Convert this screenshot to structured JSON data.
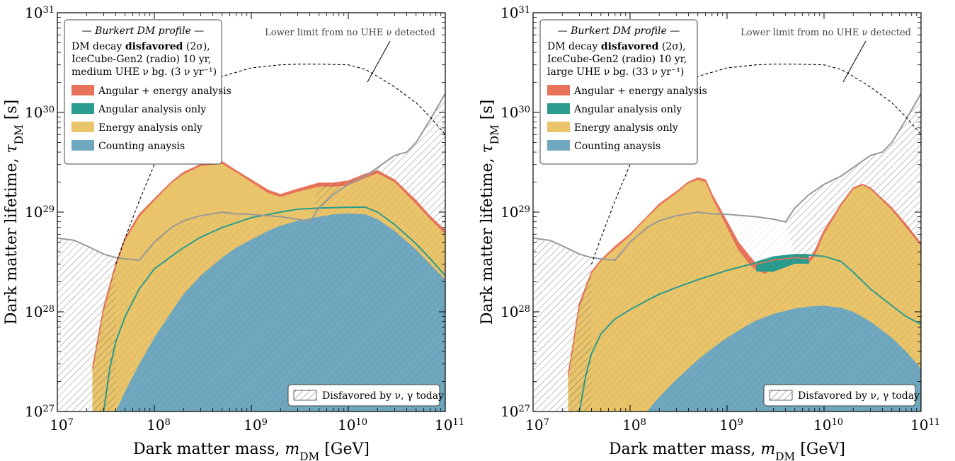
{
  "colors": {
    "angular_energy": "#e8735a",
    "angular": "#2a9d8f",
    "energy": "#e9c46a",
    "counting": "#6fa8bf",
    "disfavored_line": "#999999",
    "frame": "#000000"
  },
  "chart_data": [
    {
      "type": "area",
      "xlabel_main": "Dark matter mass, ",
      "xlabel_var": "m",
      "xlabel_sub": "DM",
      "xlabel_unit": " [GeV]",
      "ylabel_main": "Dark matter lifetime, ",
      "ylabel_var": "τ",
      "ylabel_sub": "DM",
      "ylabel_unit": " [s]",
      "x_scale": "log",
      "y_scale": "log",
      "xlim": [
        10000000.0,
        100000000000.0
      ],
      "ylim": [
        1e+27,
        1e+31
      ],
      "x_ticks": [
        {
          "base": "10",
          "exp": "7"
        },
        {
          "base": "10",
          "exp": "8"
        },
        {
          "base": "10",
          "exp": "9"
        },
        {
          "base": "10",
          "exp": "10"
        },
        {
          "base": "10",
          "exp": "11"
        }
      ],
      "y_ticks": [
        {
          "base": "10",
          "exp": "27"
        },
        {
          "base": "10",
          "exp": "28"
        },
        {
          "base": "10",
          "exp": "29"
        },
        {
          "base": "10",
          "exp": "30"
        },
        {
          "base": "10",
          "exp": "31"
        }
      ],
      "legend": {
        "header": "— Burkert DM profile —",
        "line1_pre": "DM decay ",
        "line1_bold": "disfavored",
        "line1_post": " (2σ),",
        "line2": "IceCube-Gen2 (radio) 10 yr,",
        "line3": "medium UHE ν bg. (3 ν yr⁻¹)",
        "entries": [
          "Angular + energy analysis",
          "Angular analysis only",
          "Energy analysis only",
          "Counting anaysis"
        ]
      },
      "annotation": "Lower limit from no UHE ν detected",
      "hatch_legend": "Disfavored by ν, γ today",
      "series": [
        {
          "name": "Angular + energy analysis",
          "x": [
            23000000.0,
            30000000.0,
            40000000.0,
            50000000.0,
            70000000.0,
            100000000.0,
            150000000.0,
            200000000.0,
            300000000.0,
            500000000.0,
            700000000.0,
            1000000000.0,
            1500000000.0,
            2000000000.0,
            3000000000.0,
            5000000000.0,
            7000000000.0,
            10000000000.0,
            15000000000.0,
            20000000000.0,
            30000000000.0,
            50000000000.0,
            70000000000.0,
            100000000000.0
          ],
          "y": [
            2.7e+27,
            1.1e+28,
            3e+28,
            5.5e+28,
            9.5e+28,
            1.35e+29,
            2e+29,
            2.5e+29,
            3e+29,
            3.2e+29,
            2.6e+29,
            2.1e+29,
            1.65e+29,
            1.5e+29,
            1.7e+29,
            1.95e+29,
            1.95e+29,
            2.05e+29,
            2.4e+29,
            2.6e+29,
            2.1e+29,
            1.3e+29,
            9e+28,
            6.5e+28
          ]
        },
        {
          "name": "Energy analysis only",
          "x": [
            23000000.0,
            30000000.0,
            40000000.0,
            50000000.0,
            70000000.0,
            100000000.0,
            150000000.0,
            200000000.0,
            300000000.0,
            500000000.0,
            700000000.0,
            1000000000.0,
            1500000000.0,
            2000000000.0,
            3000000000.0,
            5000000000.0,
            7000000000.0,
            10000000000.0,
            15000000000.0,
            20000000000.0,
            30000000000.0,
            50000000000.0,
            70000000000.0,
            100000000000.0
          ],
          "y": [
            2.5e+27,
            1e+28,
            2.8e+28,
            5.2e+28,
            9e+28,
            1.3e+29,
            1.95e+29,
            2.4e+29,
            2.9e+29,
            3.05e+29,
            2.5e+29,
            2e+29,
            1.55e+29,
            1.42e+29,
            1.6e+29,
            1.8e+29,
            1.8e+29,
            1.85e+29,
            2.2e+29,
            2.45e+29,
            2e+29,
            1.2e+29,
            8.5e+28,
            6e+28
          ]
        },
        {
          "name": "Angular analysis only",
          "x": [
            30000000.0,
            35000000.0,
            40000000.0,
            50000000.0,
            70000000.0,
            100000000.0,
            150000000.0,
            200000000.0,
            300000000.0,
            500000000.0,
            1000000000.0,
            2000000000.0,
            3000000000.0,
            5000000000.0,
            10000000000.0,
            15000000000.0,
            20000000000.0,
            30000000000.0,
            50000000000.0,
            70000000000.0,
            100000000000.0
          ],
          "y": [
            1e+27,
            2.8e+27,
            5e+27,
            9e+27,
            1.7e+28,
            2.7e+28,
            3.6e+28,
            4.4e+28,
            5.6e+28,
            7e+28,
            8.8e+28,
            1e+29,
            1.07e+29,
            1.1e+29,
            1.12e+29,
            1.12e+29,
            1e+29,
            7.5e+28,
            4.8e+28,
            3.4e+28,
            2.3e+28
          ]
        },
        {
          "name": "Counting anaysis",
          "x": [
            40000000.0,
            50000000.0,
            70000000.0,
            100000000.0,
            150000000.0,
            200000000.0,
            300000000.0,
            500000000.0,
            700000000.0,
            1000000000.0,
            1500000000.0,
            2000000000.0,
            3000000000.0,
            5000000000.0,
            7000000000.0,
            10000000000.0,
            15000000000.0,
            20000000000.0,
            30000000000.0,
            50000000000.0,
            70000000000.0,
            100000000000.0
          ],
          "y": [
            1e+27,
            1.6e+27,
            3e+27,
            5.5e+27,
            1e+28,
            1.5e+28,
            2.3e+28,
            3.5e+28,
            4.4e+28,
            5.3e+28,
            6.5e+28,
            7.3e+28,
            8.2e+28,
            9e+28,
            9.5e+28,
            9.7e+28,
            9.5e+28,
            8.5e+28,
            6.5e+28,
            4.2e+28,
            3e+28,
            2.1e+28
          ]
        },
        {
          "name": "Disfavored by ν, γ today",
          "x": [
            10000000.0,
            15000000.0,
            20000000.0,
            30000000.0,
            40000000.0,
            50000000.0,
            70000000.0,
            100000000.0,
            150000000.0,
            200000000.0,
            300000000.0,
            500000000.0,
            700000000.0,
            1000000000.0,
            2000000000.0,
            3000000000.0,
            4000000000.0,
            5000000000.0,
            7000000000.0,
            10000000000.0,
            15000000000.0,
            20000000000.0,
            30000000000.0,
            40000000000.0,
            50000000000.0,
            70000000000.0,
            100000000000.0
          ],
          "y": [
            5.5e+28,
            5.2e+28,
            4.6e+28,
            3.8e+28,
            3.5e+28,
            3.4e+28,
            3.3e+28,
            5e+28,
            7e+28,
            8.2e+28,
            9.2e+28,
            1e+29,
            9.6e+28,
            9.5e+28,
            9e+28,
            8.5e+28,
            8e+28,
            1.1e+29,
            1.5e+29,
            1.9e+29,
            2.3e+29,
            2.8e+29,
            3.7e+29,
            4e+29,
            5e+29,
            8.5e+29,
            1.55e+30
          ]
        },
        {
          "name": "Lower limit from no UHE ν detected",
          "x": [
            40000000.0,
            50000000.0,
            70000000.0,
            100000000.0,
            150000000.0,
            200000000.0,
            300000000.0,
            500000000.0,
            1000000000.0,
            2000000000.0,
            3000000000.0,
            5000000000.0,
            10000000000.0,
            15000000000.0,
            20000000000.0,
            30000000000.0,
            50000000000.0,
            70000000000.0,
            100000000000.0
          ],
          "y": [
            3e+28,
            5.5e+28,
            1.3e+29,
            3e+29,
            6.5e+29,
            1e+30,
            1.6e+30,
            2.3e+30,
            2.8e+30,
            3e+30,
            3.05e+30,
            3.05e+30,
            3e+30,
            2.7e+30,
            2.3e+30,
            1.8e+30,
            1.25e+30,
            9e+29,
            6e+29
          ]
        }
      ]
    },
    {
      "type": "area",
      "xlabel_main": "Dark matter mass, ",
      "xlabel_var": "m",
      "xlabel_sub": "DM",
      "xlabel_unit": " [GeV]",
      "ylabel_main": "Dark matter lifetime, ",
      "ylabel_var": "τ",
      "ylabel_sub": "DM",
      "ylabel_unit": " [s]",
      "x_scale": "log",
      "y_scale": "log",
      "xlim": [
        10000000.0,
        100000000000.0
      ],
      "ylim": [
        1e+27,
        1e+31
      ],
      "x_ticks": [
        {
          "base": "10",
          "exp": "7"
        },
        {
          "base": "10",
          "exp": "8"
        },
        {
          "base": "10",
          "exp": "9"
        },
        {
          "base": "10",
          "exp": "10"
        },
        {
          "base": "10",
          "exp": "11"
        }
      ],
      "y_ticks": [
        {
          "base": "10",
          "exp": "27"
        },
        {
          "base": "10",
          "exp": "28"
        },
        {
          "base": "10",
          "exp": "29"
        },
        {
          "base": "10",
          "exp": "30"
        },
        {
          "base": "10",
          "exp": "31"
        }
      ],
      "legend": {
        "header": "— Burkert DM profile —",
        "line1_pre": "DM decay ",
        "line1_bold": "disfavored",
        "line1_post": " (2σ),",
        "line2": "IceCube-Gen2 (radio) 10 yr,",
        "line3": "large UHE ν bg. (33 ν yr⁻¹)",
        "entries": [
          "Angular + energy analysis",
          "Angular analysis only",
          "Energy analysis only",
          "Counting anaysis"
        ]
      },
      "annotation": "Lower limit from no UHE ν detected",
      "hatch_legend": "Disfavored by ν, γ today",
      "series": [
        {
          "name": "Angular + energy analysis",
          "x": [
            23000000.0,
            30000000.0,
            40000000.0,
            50000000.0,
            70000000.0,
            100000000.0,
            150000000.0,
            200000000.0,
            300000000.0,
            400000000.0,
            500000000.0,
            600000000.0,
            700000000.0,
            1000000000.0,
            1300000000.0,
            1700000000.0,
            2000000000.0,
            3000000000.0,
            5000000000.0,
            7000000000.0,
            8000000000.0,
            10000000000.0,
            15000000000.0,
            20000000000.0,
            25000000000.0,
            30000000000.0,
            50000000000.0,
            70000000000.0,
            100000000000.0
          ],
          "y": [
            2.3e+27,
            1.2e+28,
            2.5e+28,
            3.3e+28,
            4.5e+28,
            6e+28,
            9e+28,
            1.2e+29,
            1.6e+29,
            2e+29,
            2.2e+29,
            2.1e+29,
            1.5e+29,
            8e+28,
            5e+28,
            3.6e+28,
            3e+28,
            3.3e+28,
            3.5e+28,
            3.4e+28,
            4e+28,
            6.5e+28,
            1.2e+29,
            1.75e+29,
            1.9e+29,
            1.75e+29,
            1.1e+29,
            7.5e+28,
            4.8e+28
          ]
        },
        {
          "name": "Energy analysis only",
          "x": [
            23000000.0,
            30000000.0,
            40000000.0,
            50000000.0,
            70000000.0,
            100000000.0,
            150000000.0,
            200000000.0,
            300000000.0,
            400000000.0,
            500000000.0,
            600000000.0,
            700000000.0,
            1000000000.0,
            1300000000.0,
            1700000000.0,
            2000000000.0,
            2500000000.0,
            3000000000.0,
            5000000000.0,
            7000000000.0,
            8000000000.0,
            10000000000.0,
            15000000000.0,
            20000000000.0,
            25000000000.0,
            30000000000.0,
            50000000000.0,
            70000000000.0,
            100000000000.0
          ],
          "y": [
            2.2e+27,
            1.1e+28,
            2.4e+28,
            3.2e+28,
            4.3e+28,
            5.8e+28,
            8.8e+28,
            1.15e+29,
            1.55e+29,
            1.95e+29,
            2.1e+29,
            2e+29,
            1.4e+29,
            7e+28,
            4.2e+28,
            3e+28,
            2.6e+28,
            2.4e+28,
            3e+28,
            3.3e+28,
            3.1e+28,
            3.6e+28,
            6e+28,
            1.15e+29,
            1.7e+29,
            1.85e+29,
            1.7e+29,
            1.05e+29,
            7e+28,
            4.6e+28
          ]
        },
        {
          "name": "Angular analysis only",
          "x": [
            30000000.0,
            35000000.0,
            40000000.0,
            50000000.0,
            70000000.0,
            100000000.0,
            150000000.0,
            200000000.0,
            300000000.0,
            500000000.0,
            1000000000.0,
            2000000000.0,
            3000000000.0,
            5000000000.0,
            7000000000.0,
            10000000000.0,
            15000000000.0,
            20000000000.0,
            30000000000.0,
            50000000000.0,
            70000000000.0,
            100000000000.0
          ],
          "y": [
            1e+27,
            2.3e+27,
            3.8e+27,
            6e+27,
            8.5e+27,
            1.05e+28,
            1.3e+28,
            1.5e+28,
            1.75e+28,
            2.1e+28,
            2.6e+28,
            3.1e+28,
            3.5e+28,
            3.7e+28,
            3.7e+28,
            3.6e+28,
            3.2e+28,
            2.5e+28,
            1.7e+28,
            1.15e+28,
            9e+27,
            7.5e+27
          ]
        },
        {
          "name": "Counting anaysis",
          "x": [
            150000000.0,
            200000000.0,
            300000000.0,
            500000000.0,
            700000000.0,
            1000000000.0,
            1500000000.0,
            2000000000.0,
            3000000000.0,
            5000000000.0,
            7000000000.0,
            10000000000.0,
            15000000000.0,
            20000000000.0,
            30000000000.0,
            50000000000.0,
            70000000000.0,
            100000000000.0
          ],
          "y": [
            1e+27,
            1.4e+27,
            2.1e+27,
            3.3e+27,
            4.3e+27,
            5.5e+27,
            7e+27,
            8.2e+27,
            9.5e+27,
            1.08e+28,
            1.13e+28,
            1.15e+28,
            1.1e+28,
            1e+28,
            8e+27,
            5.5e+27,
            4e+27,
            2.7e+27
          ]
        },
        {
          "name": "Disfavored by ν, γ today",
          "x": [
            10000000.0,
            15000000.0,
            20000000.0,
            30000000.0,
            40000000.0,
            50000000.0,
            70000000.0,
            100000000.0,
            150000000.0,
            200000000.0,
            300000000.0,
            500000000.0,
            700000000.0,
            1000000000.0,
            2000000000.0,
            3000000000.0,
            4000000000.0,
            5000000000.0,
            7000000000.0,
            10000000000.0,
            15000000000.0,
            20000000000.0,
            30000000000.0,
            40000000000.0,
            50000000000.0,
            70000000000.0,
            100000000000.0
          ],
          "y": [
            5.5e+28,
            5.2e+28,
            4.6e+28,
            3.8e+28,
            3.5e+28,
            3.4e+28,
            3.3e+28,
            5e+28,
            7e+28,
            8.2e+28,
            9.2e+28,
            1e+29,
            9.6e+28,
            9.5e+28,
            9e+28,
            8.5e+28,
            8e+28,
            1.1e+29,
            1.5e+29,
            1.9e+29,
            2.3e+29,
            2.8e+29,
            3.7e+29,
            4e+29,
            5e+29,
            8.5e+29,
            1.55e+30
          ]
        },
        {
          "name": "Lower limit from no UHE ν detected",
          "x": [
            40000000.0,
            50000000.0,
            70000000.0,
            100000000.0,
            150000000.0,
            200000000.0,
            300000000.0,
            500000000.0,
            1000000000.0,
            2000000000.0,
            3000000000.0,
            5000000000.0,
            10000000000.0,
            15000000000.0,
            20000000000.0,
            30000000000.0,
            50000000000.0,
            70000000000.0,
            100000000000.0
          ],
          "y": [
            3e+28,
            5.5e+28,
            1.3e+29,
            3e+29,
            6.5e+29,
            1e+30,
            1.6e+30,
            2.3e+30,
            2.8e+30,
            3e+30,
            3.05e+30,
            3.05e+30,
            3e+30,
            2.7e+30,
            2.3e+30,
            1.8e+30,
            1.25e+30,
            9e+29,
            6e+29
          ]
        }
      ]
    }
  ]
}
